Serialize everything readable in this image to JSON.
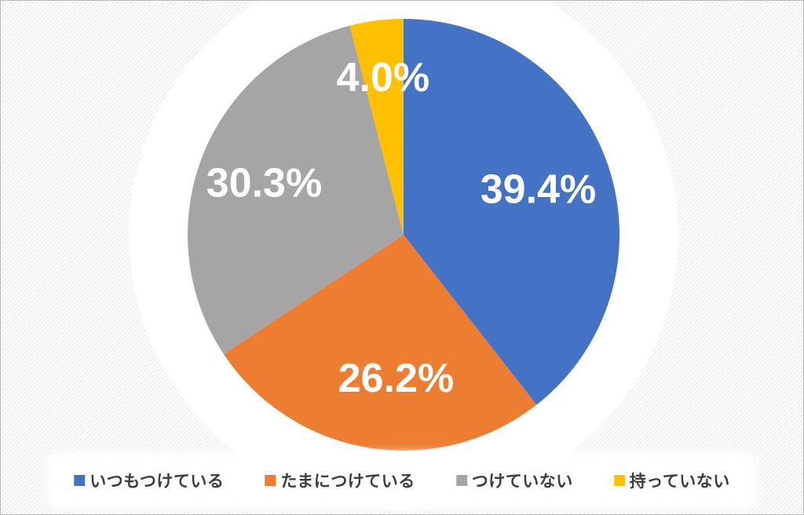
{
  "chart_data": {
    "type": "pie",
    "title": "",
    "categories": [
      "いつもつけている",
      "たまにつけている",
      "つけていない",
      "持っていない"
    ],
    "values": [
      39.4,
      26.2,
      30.3,
      4.0
    ],
    "data_labels": [
      "39.4%",
      "26.2%",
      "30.3%",
      "4.0%"
    ],
    "colors": [
      "#4472C4",
      "#ED7D31",
      "#A5A5A5",
      "#FFC000"
    ],
    "data_label_color": "#FFFFFF",
    "start_angle_deg": 0,
    "direction": "clockwise",
    "legend_position": "bottom",
    "legend_text_color": "#3D3D3D",
    "label_hints": [
      {
        "angle_deg": 70.9,
        "r_frac": 0.66
      },
      {
        "angle_deg": 183.0,
        "r_frac": 0.66
      },
      {
        "angle_deg": 290.7,
        "r_frac": 0.69
      },
      {
        "angle_deg": 352.6,
        "r_frac": 0.74
      }
    ]
  }
}
